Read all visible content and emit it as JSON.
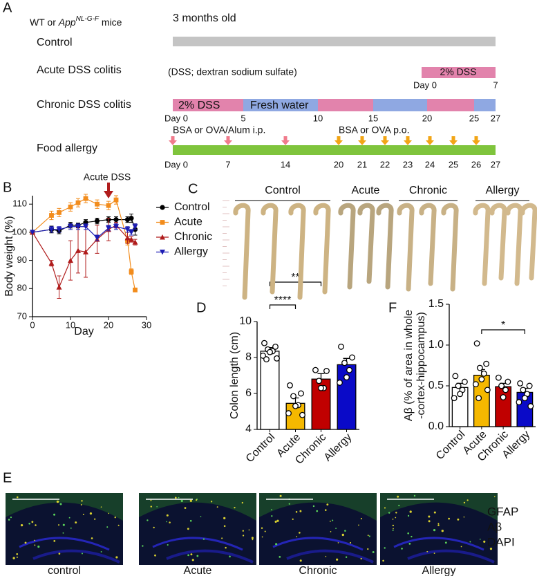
{
  "figure": {
    "panel_labels": [
      "A",
      "B",
      "C",
      "D",
      "E",
      "F"
    ],
    "timeline": {
      "mouse_prefix": "WT or ",
      "mouse_gene": "App",
      "mouse_genotype": "NL-G-F",
      "mouse_suffix": " mice",
      "age": "3 months old",
      "groups": [
        "Control",
        "Acute DSS colitis",
        "Chronic DSS colitis",
        "Food allergy"
      ],
      "dss_note": "(DSS; dextran sodium sulfate)",
      "acute_treatment": "2% DSS",
      "acute_days": [
        "Day 0",
        "7"
      ],
      "chronic_treatments": [
        "2% DSS",
        "Fresh water"
      ],
      "chronic_days": [
        "Day 0",
        "5",
        "10",
        "15",
        "20",
        "25",
        "27"
      ],
      "allergy_sensitization": "BSA or OVA/Alum i.p.",
      "allergy_challenge": "BSA or OVA p.o.",
      "allergy_days": [
        "Day 0",
        "7",
        "14",
        "20",
        "21",
        "22",
        "23",
        "24",
        "25",
        "26",
        "27"
      ]
    },
    "colon_photo": {
      "groups": [
        "Control",
        "Acute",
        "Chronic",
        "Allergy"
      ]
    },
    "immunostaining": {
      "groups": [
        "control",
        "Acute",
        "Chronic",
        "Allergy"
      ],
      "channels": [
        {
          "name": "GFAP",
          "color": "#2a9a2a"
        },
        {
          "name": "Aβ",
          "color": "#d01818"
        },
        {
          "name": "DAPI",
          "color": "#1a1ad0"
        }
      ]
    }
  },
  "chart_data": [
    {
      "type": "line",
      "annotation": "Acute DSS",
      "xlabel": "Day",
      "ylabel": "Body weight (%)",
      "x": [
        0,
        5,
        7,
        10,
        12,
        14,
        17,
        20,
        22,
        25,
        26,
        27
      ],
      "xlim": [
        0,
        30
      ],
      "xticks": [
        0,
        10,
        20,
        30
      ],
      "ylim": [
        70,
        113
      ],
      "yticks": [
        70,
        80,
        90,
        100,
        110
      ],
      "legend": "right",
      "series": [
        {
          "name": "Control",
          "color": "#000000",
          "marker": "circle",
          "values": [
            100,
            101,
            100.5,
            102.5,
            102.5,
            103.5,
            104,
            104.5,
            104.5,
            104.5,
            105,
            101
          ],
          "errors": [
            0,
            1.2,
            1,
            1,
            0.8,
            1,
            1,
            1,
            1,
            1,
            1.5,
            2
          ]
        },
        {
          "name": "Acute",
          "color": "#f28c1c",
          "marker": "square",
          "values": [
            100,
            106,
            107,
            109,
            110.5,
            112,
            110,
            109.5,
            111.5,
            97,
            86,
            79.5
          ],
          "errors": [
            0,
            1.5,
            1.5,
            1.5,
            1.5,
            1.5,
            1.5,
            1.5,
            1.5,
            1.5,
            1,
            0.5
          ]
        },
        {
          "name": "Chronic",
          "color": "#b01c1c",
          "marker": "triangle",
          "values": [
            100,
            89,
            80.5,
            90,
            93.5,
            93,
            97.5,
            101,
            102.5,
            98,
            97.5,
            96.5
          ],
          "errors": [
            0,
            1,
            4,
            7,
            8,
            9,
            5,
            4,
            1,
            2,
            1,
            1
          ]
        },
        {
          "name": "Allergy",
          "color": "#1c1cb4",
          "marker": "triangle-down",
          "values": [
            100,
            101,
            101,
            102,
            102,
            102,
            98,
            101.5,
            102,
            101,
            100,
            102
          ],
          "errors": [
            0,
            1,
            1,
            1,
            1,
            1,
            1,
            1,
            1,
            1,
            1,
            1
          ]
        }
      ]
    },
    {
      "type": "bar",
      "ylabel": "Colon length (cm)",
      "categories": [
        "Control",
        "Acute",
        "Chronic",
        "Allergy"
      ],
      "values": [
        8.35,
        5.45,
        6.8,
        7.6
      ],
      "errors": [
        0.2,
        0.3,
        0.3,
        0.35
      ],
      "points": [
        [
          8.8,
          8.6,
          8.45,
          8.35,
          8.3,
          8.1,
          7.95,
          7.9
        ],
        [
          6.45,
          6.0,
          5.85,
          5.35,
          5.3,
          4.9,
          4.8
        ],
        [
          7.3,
          7.25,
          6.7,
          6.3,
          6.3
        ],
        [
          8.6,
          8.0,
          7.7,
          7.3,
          6.9,
          6.6
        ]
      ],
      "colors": [
        "#ffffff",
        "#f5b800",
        "#c00000",
        "#0a0ac8"
      ],
      "ylim": [
        4,
        10
      ],
      "yticks": [
        4,
        6,
        8,
        10
      ],
      "significance": [
        {
          "label": "****",
          "groups": [
            "Control",
            "Acute"
          ]
        },
        {
          "label": "**",
          "groups": [
            "Control",
            "Chronic"
          ]
        }
      ]
    },
    {
      "type": "bar",
      "ylabel": [
        "Aβ  (% of area in whole",
        "-cortex-hippocampus)"
      ],
      "categories": [
        "Control",
        "Acute",
        "Chronic",
        "Allergy"
      ],
      "values": [
        0.48,
        0.63,
        0.49,
        0.42
      ],
      "errors": [
        0.05,
        0.07,
        0.04,
        0.05
      ],
      "points": [
        [
          0.62,
          0.55,
          0.5,
          0.45,
          0.4,
          0.35
        ],
        [
          1.02,
          0.77,
          0.72,
          0.65,
          0.58,
          0.52,
          0.45,
          0.35
        ],
        [
          0.6,
          0.55,
          0.5,
          0.45,
          0.36
        ],
        [
          0.53,
          0.5,
          0.45,
          0.4,
          0.35,
          0.3,
          0.25
        ]
      ],
      "colors": [
        "#ffffff",
        "#f5b800",
        "#c00000",
        "#0a0ac8"
      ],
      "ylim": [
        0,
        1.5
      ],
      "yticks": [
        {
          "value": 0,
          "label": "0.0"
        },
        0.5,
        {
          "value": 1,
          "label": "1.0"
        },
        1.5
      ],
      "significance": [
        {
          "label": "*",
          "groups": [
            "Acute",
            "Allergy"
          ]
        }
      ]
    }
  ]
}
